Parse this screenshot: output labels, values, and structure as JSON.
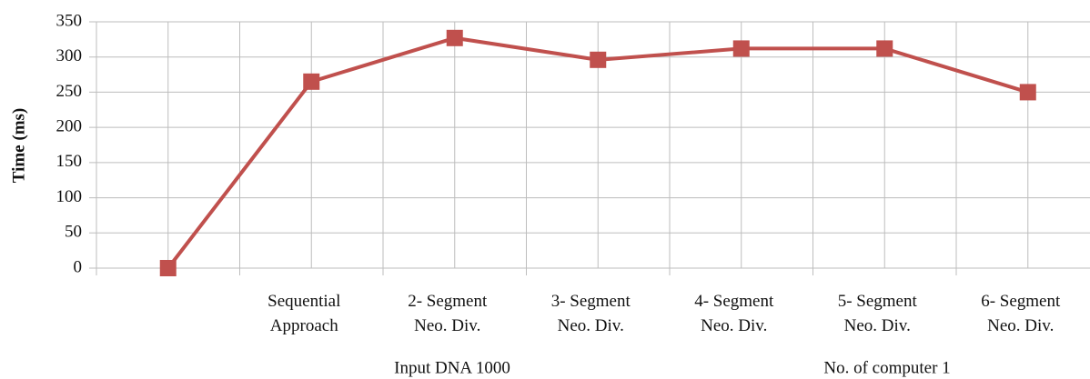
{
  "chart_data": {
    "type": "line",
    "y_label": "Time (ms)",
    "annotations": [
      "Input DNA 1000",
      "No. of computer 1"
    ],
    "categories": [
      null,
      "Sequential Approach",
      "2- Segment Neo. Div.",
      "3- Segment Neo. Div.",
      "4- Segment Neo. Div.",
      "5- Segment Neo. Div.",
      "6- Segment Neo. Div."
    ],
    "series": [
      {
        "name": "Time",
        "color": "#c0504d",
        "values": [
          0,
          265,
          327,
          296,
          312,
          312,
          250
        ]
      }
    ],
    "ylim": [
      0,
      350
    ],
    "yticks": [
      0,
      50,
      100,
      150,
      200,
      250,
      300,
      350
    ],
    "grid": true
  }
}
